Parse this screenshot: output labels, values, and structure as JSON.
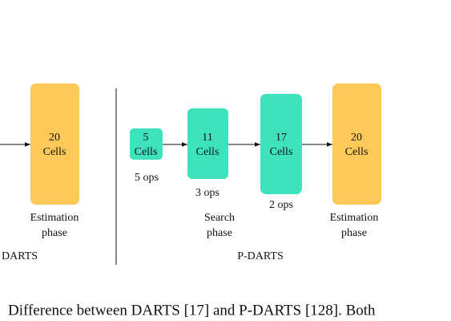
{
  "left": {
    "node": {
      "lines": [
        "20",
        "Cells"
      ]
    },
    "phase": [
      "Estimation",
      "phase"
    ],
    "group": "DARTS"
  },
  "right": {
    "nodes": [
      {
        "lines": [
          "5",
          "Cells"
        ],
        "ops": "5 ops"
      },
      {
        "lines": [
          "11",
          "Cells"
        ],
        "ops": "3 ops"
      },
      {
        "lines": [
          "17",
          "Cells"
        ],
        "ops": "2 ops"
      },
      {
        "lines": [
          "20",
          "Cells"
        ]
      }
    ],
    "phases": [
      [
        "Search",
        "phase"
      ],
      [
        "Estimation",
        "phase"
      ]
    ],
    "group": "P-DARTS"
  },
  "caption": "Difference between DARTS [17] and P-DARTS [128]. Both"
}
